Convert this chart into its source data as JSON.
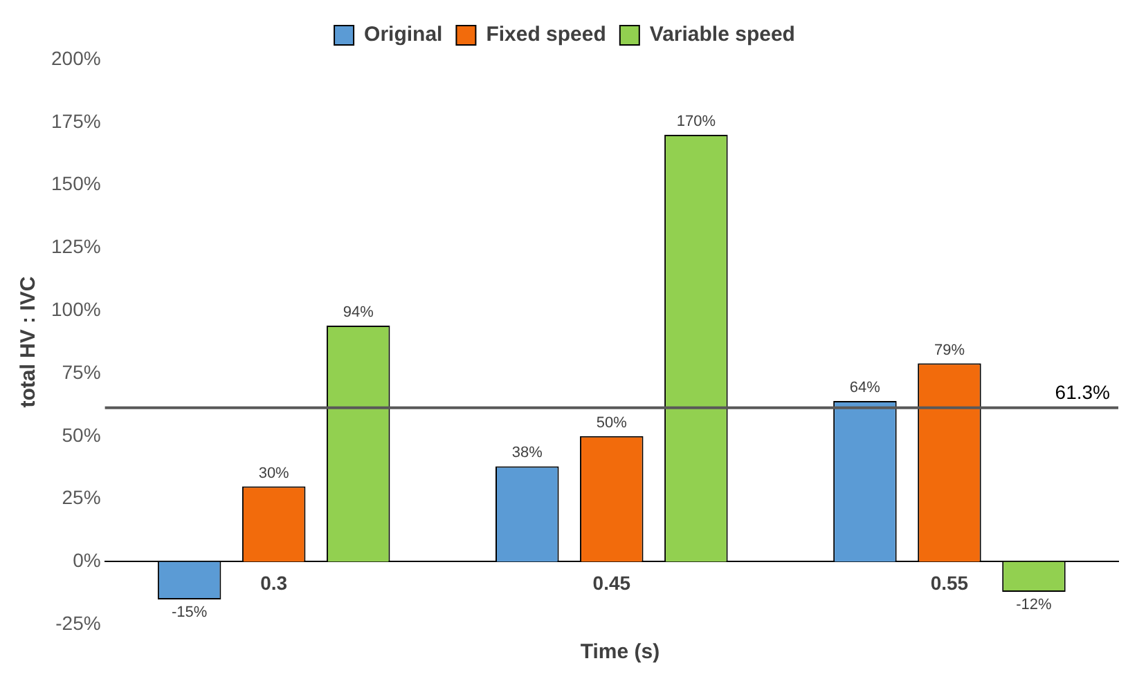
{
  "chart_data": {
    "type": "bar",
    "xlabel": "Time (s)",
    "ylabel": "total HV : IVC",
    "categories": [
      "0.3",
      "0.45",
      "0.55"
    ],
    "series": [
      {
        "name": "Original",
        "color": "#5b9bd5",
        "values": [
          -15,
          38,
          64
        ],
        "value_labels": [
          "-15%",
          "38%",
          "64%"
        ]
      },
      {
        "name": "Fixed speed",
        "color": "#f26b0c",
        "values": [
          30,
          50,
          79
        ],
        "value_labels": [
          "30%",
          "50%",
          "79%"
        ]
      },
      {
        "name": "Variable speed",
        "color": "#92d050",
        "values": [
          94,
          170,
          -12
        ],
        "value_labels": [
          "94%",
          "170%",
          "-12%"
        ]
      }
    ],
    "ylim": [
      -25,
      200
    ],
    "yticks": [
      {
        "value": -25,
        "label": "-25%"
      },
      {
        "value": 0,
        "label": "0%"
      },
      {
        "value": 25,
        "label": "25%"
      },
      {
        "value": 50,
        "label": "50%"
      },
      {
        "value": 75,
        "label": "75%"
      },
      {
        "value": 100,
        "label": "100%"
      },
      {
        "value": 125,
        "label": "125%"
      },
      {
        "value": 150,
        "label": "150%"
      },
      {
        "value": 175,
        "label": "175%"
      },
      {
        "value": 200,
        "label": "200%"
      }
    ],
    "ref_lines": [
      {
        "axis": "y",
        "value": 61.3,
        "label": "61.3%",
        "color": "#595959"
      }
    ],
    "grid": false,
    "legend": "top"
  }
}
